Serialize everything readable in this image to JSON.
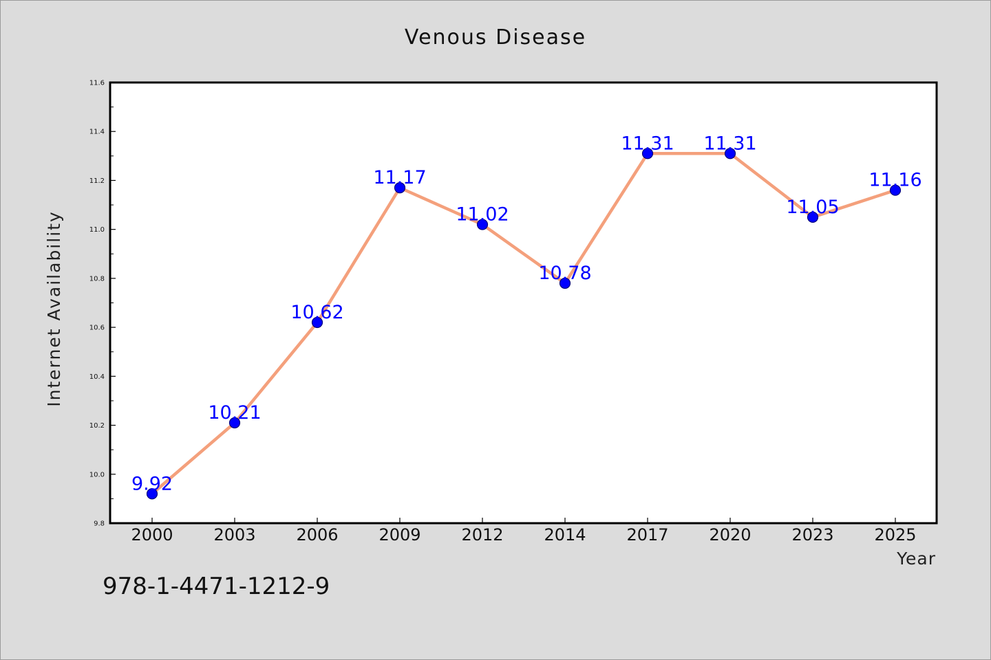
{
  "chart_data": {
    "type": "line",
    "title": "Venous Disease",
    "xlabel": "Year",
    "ylabel": "Internet Availability",
    "categories": [
      "2000",
      "2003",
      "2006",
      "2009",
      "2012",
      "2014",
      "2017",
      "2020",
      "2023",
      "2025"
    ],
    "values": [
      9.92,
      10.21,
      10.62,
      11.17,
      11.02,
      10.78,
      11.31,
      11.31,
      11.05,
      11.16
    ],
    "data_labels": [
      "9.92",
      "10.21",
      "10.62",
      "11.17",
      "11.02",
      "10.78",
      "11.31",
      "11.31",
      "11.05",
      "11.16"
    ],
    "ylim": [
      9.8,
      11.6
    ],
    "y_major_ticks": [
      "9.8",
      "10.0",
      "10.2",
      "10.4",
      "10.6",
      "10.8",
      "11.0",
      "11.2",
      "11.4",
      "11.6"
    ],
    "grid": false,
    "legend": "none",
    "colors": {
      "line": "#f4a07c",
      "marker": "#0000ff",
      "marker_edge": "#00007a",
      "data_label": "#0000ff",
      "plot_background": "#ffffff",
      "figure_background": "#dcdcdc"
    }
  },
  "footer": {
    "code": "978-1-4471-1212-9"
  }
}
